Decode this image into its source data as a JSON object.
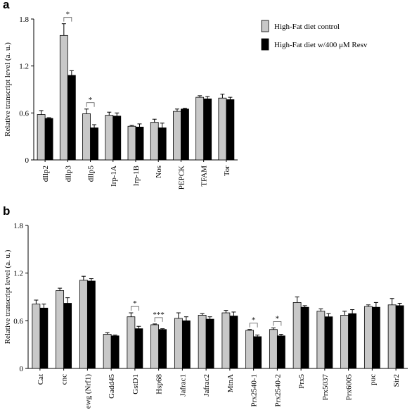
{
  "chart_data": [
    {
      "type": "bar",
      "panel": "a",
      "ylabel": "Relative transcript level (a. u.)",
      "categories": [
        "dIlp2",
        "dIlp3",
        "dIlp5",
        "Irp-1A",
        "Irp-1B",
        "Nos",
        "PEPCK",
        "TFAM",
        "Tor"
      ],
      "series": [
        {
          "name": "High-Fat diet control",
          "color": "#c8c8c8",
          "values": [
            0.58,
            1.59,
            0.59,
            0.57,
            0.43,
            0.48,
            0.62,
            0.8,
            0.79
          ],
          "errors": [
            0.05,
            0.15,
            0.06,
            0.04,
            0.01,
            0.04,
            0.03,
            0.02,
            0.05
          ]
        },
        {
          "name": "High-Fat diet w/400 μM Resv",
          "color": "#000000",
          "values": [
            0.53,
            1.08,
            0.41,
            0.56,
            0.42,
            0.41,
            0.65,
            0.78,
            0.77
          ],
          "errors": [
            0.01,
            0.06,
            0.04,
            0.04,
            0.04,
            0.06,
            0.01,
            0.03,
            0.03
          ]
        }
      ],
      "significance": [
        {
          "category": "dIlp3",
          "label": "*"
        },
        {
          "category": "dIlp5",
          "label": "*"
        }
      ],
      "ylim": [
        0,
        1.8
      ],
      "yticks": [
        0,
        0.6,
        1.2,
        1.8
      ],
      "legend": true
    },
    {
      "type": "bar",
      "panel": "b",
      "ylabel": "Relative transcript level (a. u.)",
      "categories": [
        "Cat",
        "cnc",
        "ewg (Nrf1)",
        "Gadd45",
        "GstD1",
        "Hsp68",
        "Jafrac1",
        "Jafrac2",
        "MtnA",
        "Prx2540-1",
        "Prx2540-2",
        "Prx5",
        "Prx5037",
        "Prx6005",
        "puc",
        "Sir2"
      ],
      "series": [
        {
          "color": "#c8c8c8",
          "values": [
            0.81,
            0.98,
            1.11,
            0.43,
            0.65,
            0.55,
            0.63,
            0.67,
            0.7,
            0.48,
            0.49,
            0.83,
            0.72,
            0.67,
            0.78,
            0.8
          ],
          "errors": [
            0.05,
            0.03,
            0.05,
            0.02,
            0.05,
            0.01,
            0.07,
            0.02,
            0.03,
            0.01,
            0.02,
            0.07,
            0.03,
            0.05,
            0.02,
            0.08
          ]
        },
        {
          "color": "#000000",
          "values": [
            0.76,
            0.82,
            1.1,
            0.41,
            0.5,
            0.49,
            0.6,
            0.62,
            0.66,
            0.4,
            0.41,
            0.77,
            0.65,
            0.69,
            0.77,
            0.79
          ],
          "errors": [
            0.05,
            0.07,
            0.03,
            0.01,
            0.03,
            0.01,
            0.05,
            0.03,
            0.05,
            0.02,
            0.02,
            0.02,
            0.04,
            0.05,
            0.06,
            0.03
          ]
        }
      ],
      "significance": [
        {
          "category": "GstD1",
          "label": "*"
        },
        {
          "category": "Hsp68",
          "label": "***"
        },
        {
          "category": "Prx2540-1",
          "label": "*"
        },
        {
          "category": "Prx2540-2",
          "label": "*"
        }
      ],
      "ylim": [
        0,
        1.8
      ],
      "yticks": [
        0,
        0.6,
        1.2,
        1.8
      ],
      "legend": false
    }
  ]
}
